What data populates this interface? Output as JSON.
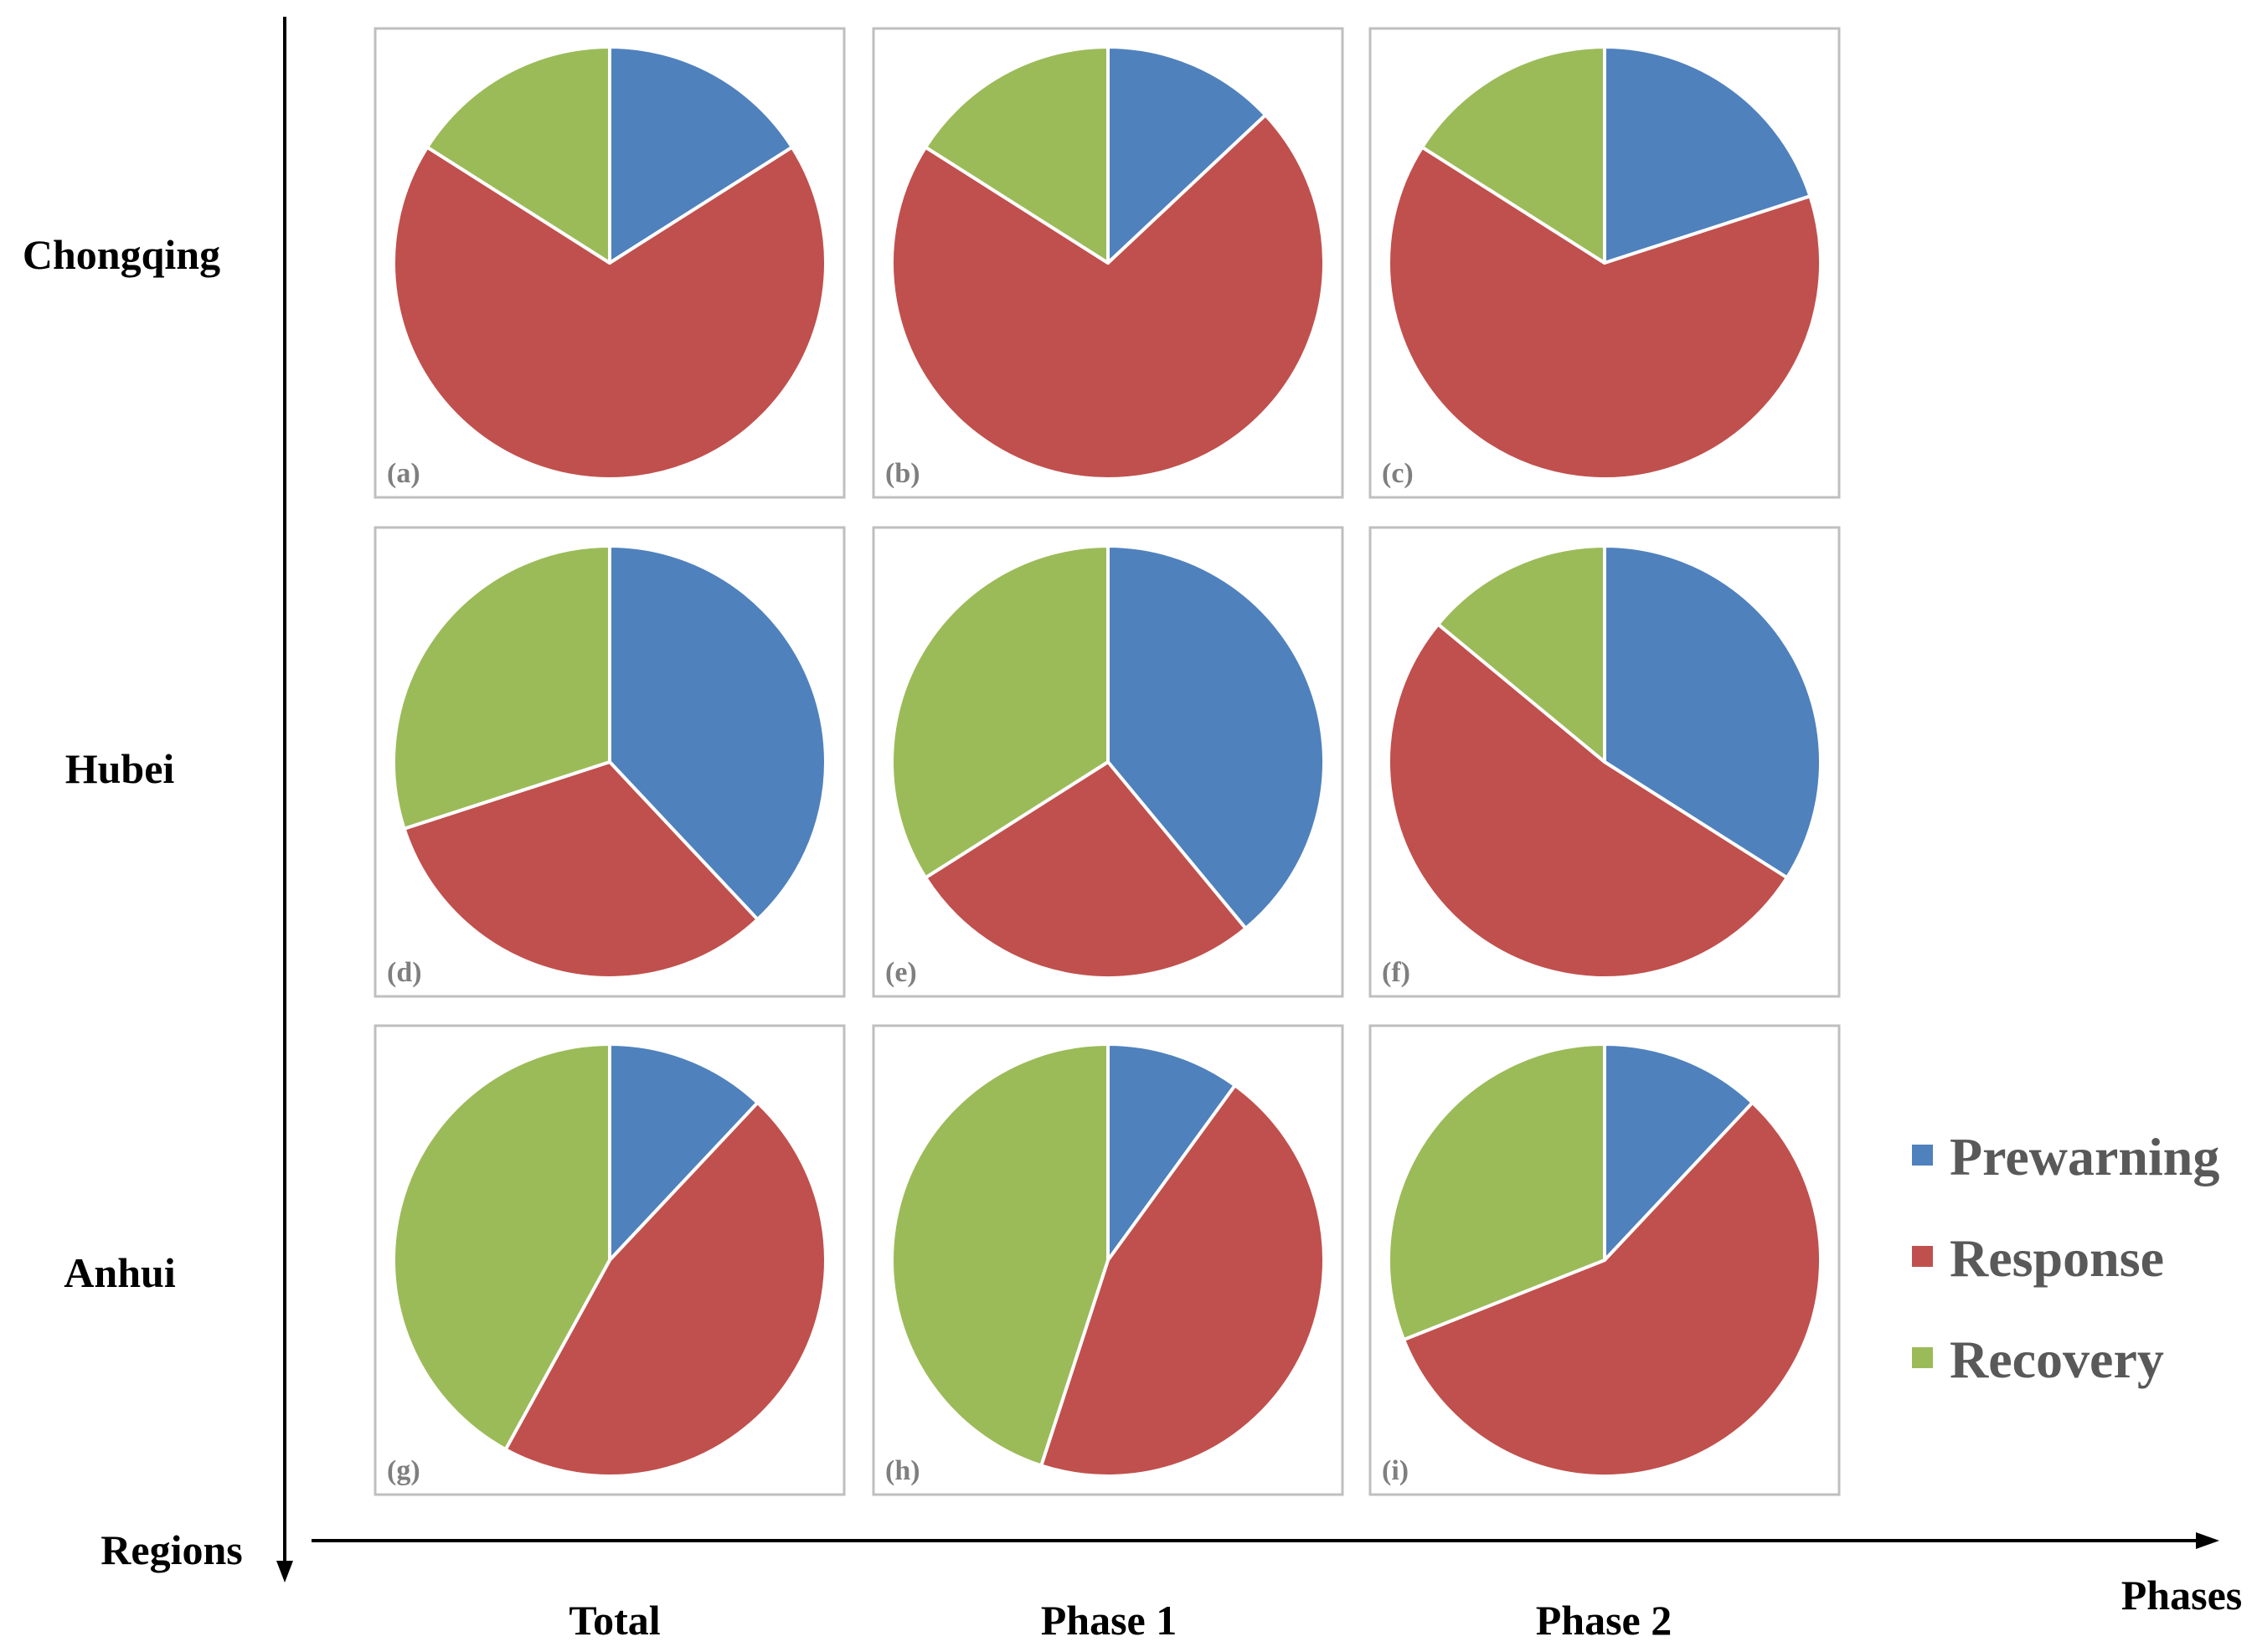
{
  "chart_data": {
    "type": "pie",
    "xlabel": "Phases",
    "ylabel": "Regions",
    "rows": [
      "Chongqing",
      "Hubei",
      "Anhui"
    ],
    "columns": [
      "Total",
      "Phase 1",
      "Phase 2"
    ],
    "categories": [
      "Prewarning",
      "Response",
      "Recovery"
    ],
    "colors": {
      "Prewarning": "#4f81bd",
      "Response": "#c0504d",
      "Recovery": "#9bbb59"
    },
    "legend": {
      "position": "right",
      "entries": [
        "Prewarning",
        "Response",
        "Recovery"
      ]
    },
    "panels": [
      {
        "label": "(a)",
        "row": "Chongqing",
        "column": "Total",
        "values": [
          16,
          68,
          16
        ]
      },
      {
        "label": "(b)",
        "row": "Chongqing",
        "column": "Phase 1",
        "values": [
          13,
          71,
          16
        ]
      },
      {
        "label": "(c)",
        "row": "Chongqing",
        "column": "Phase 2",
        "values": [
          20,
          64,
          16
        ]
      },
      {
        "label": "(d)",
        "row": "Hubei",
        "column": "Total",
        "values": [
          38,
          32,
          30
        ]
      },
      {
        "label": "(e)",
        "row": "Hubei",
        "column": "Phase 1",
        "values": [
          39,
          27,
          34
        ]
      },
      {
        "label": "(f)",
        "row": "Hubei",
        "column": "Phase 2",
        "values": [
          34,
          52,
          14
        ]
      },
      {
        "label": "(g)",
        "row": "Anhui",
        "column": "Total",
        "values": [
          12,
          46,
          42
        ]
      },
      {
        "label": "(h)",
        "row": "Anhui",
        "column": "Phase 1",
        "values": [
          10,
          45,
          45
        ]
      },
      {
        "label": "(i)",
        "row": "Anhui",
        "column": "Phase 2",
        "values": [
          12,
          57,
          31
        ]
      }
    ]
  }
}
